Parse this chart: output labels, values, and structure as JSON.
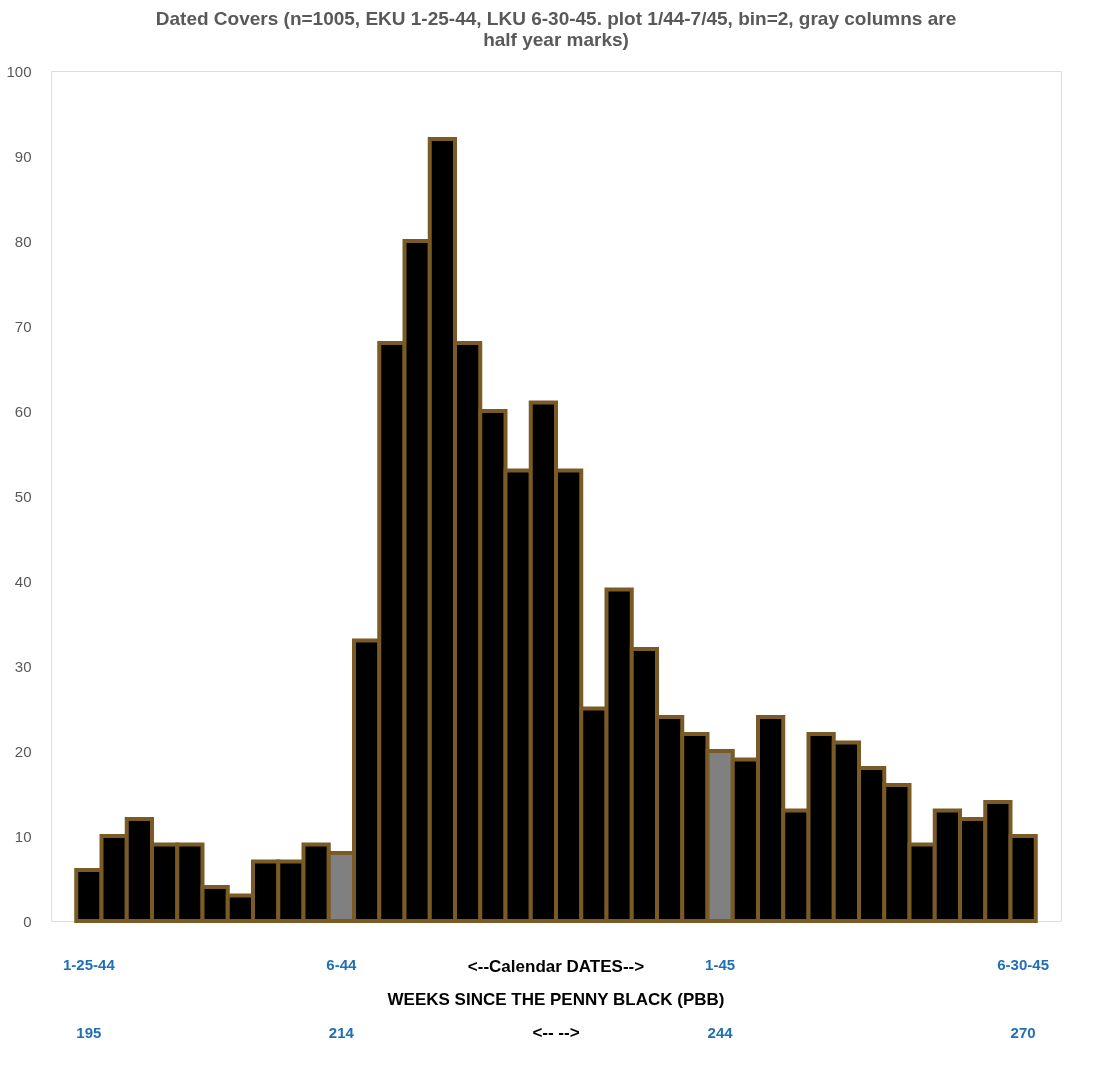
{
  "chart_data": {
    "type": "bar",
    "title": "Dated Covers (n=1005, EKU 1-25-44, LKU 6-30-45. plot 1/44-7/45, bin=2, gray columns are half year marks)",
    "xlabel": "<--Calendar DATES-->",
    "categories": [
      "1-25-44",
      null,
      null,
      null,
      null,
      null,
      null,
      null,
      null,
      null,
      "6-44",
      null,
      null,
      null,
      null,
      null,
      null,
      null,
      null,
      null,
      null,
      null,
      null,
      null,
      null,
      "1-45",
      null,
      null,
      null,
      null,
      null,
      null,
      null,
      null,
      null,
      null,
      null,
      "6-30-45"
    ],
    "values": [
      6,
      10,
      12,
      9,
      9,
      4,
      3,
      7,
      7,
      9,
      8,
      33,
      68,
      80,
      92,
      68,
      60,
      53,
      61,
      53,
      25,
      39,
      32,
      24,
      22,
      20,
      19,
      24,
      13,
      22,
      21,
      18,
      16,
      9,
      13,
      12,
      14,
      10
    ],
    "colors": [
      "#000000",
      "#000000",
      "#000000",
      "#000000",
      "#000000",
      "#000000",
      "#000000",
      "#000000",
      "#000000",
      "#000000",
      "#808080",
      "#000000",
      "#000000",
      "#000000",
      "#000000",
      "#000000",
      "#000000",
      "#000000",
      "#000000",
      "#000000",
      "#000000",
      "#000000",
      "#000000",
      "#000000",
      "#000000",
      "#808080",
      "#000000",
      "#000000",
      "#000000",
      "#000000",
      "#000000",
      "#000000",
      "#000000",
      "#000000",
      "#000000",
      "#000000",
      "#000000",
      "#000000"
    ],
    "ylim": [
      0,
      100
    ],
    "yticks": [
      0,
      10,
      20,
      30,
      40,
      50,
      60,
      70,
      80,
      90,
      100
    ],
    "grid": false,
    "annotations": [
      "WEEKS SINCE THE PENNY BLACK (PBB)",
      "<--        -->",
      "195",
      "214",
      "244",
      "270"
    ]
  }
}
